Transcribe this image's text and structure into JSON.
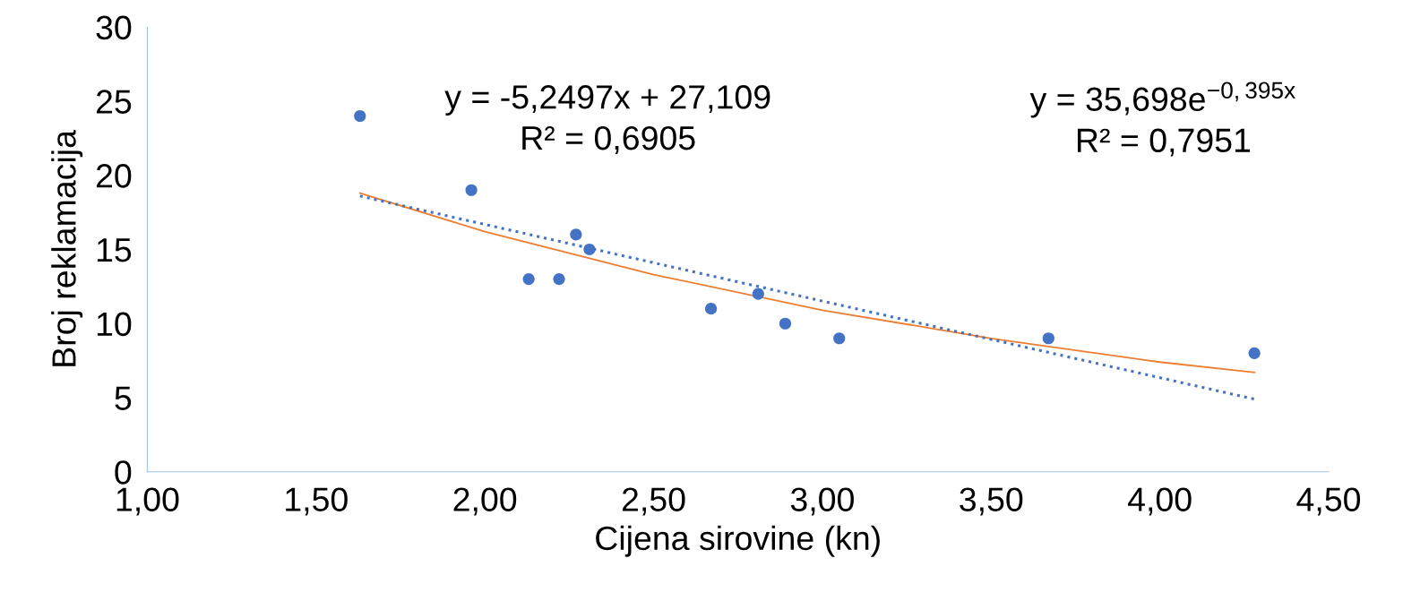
{
  "chart_data": {
    "type": "scatter",
    "xlabel": "Cijena sirovine (kn)",
    "ylabel": "Broj reklamacija",
    "xlim": [
      1.0,
      4.5
    ],
    "xticks": [
      {
        "value": 1.0,
        "label": "1,00"
      },
      {
        "value": 1.5,
        "label": "1,50"
      },
      {
        "value": 2.0,
        "label": "2,00"
      },
      {
        "value": 2.5,
        "label": "2,50"
      },
      {
        "value": 3.0,
        "label": "3,00"
      },
      {
        "value": 3.5,
        "label": "3,50"
      },
      {
        "value": 4.0,
        "label": "4,00"
      },
      {
        "value": 4.5,
        "label": "4,50"
      }
    ],
    "ylim": [
      0,
      30
    ],
    "yticks": [
      0,
      5,
      10,
      15,
      20,
      25,
      30
    ],
    "grid": false,
    "series": [
      {
        "color": "#4472c4",
        "marker": "circle",
        "x": [
          1.63,
          1.96,
          2.13,
          2.22,
          2.27,
          2.31,
          2.67,
          2.81,
          2.89,
          3.05,
          3.67,
          4.28
        ],
        "values": [
          24,
          19,
          13,
          13,
          16,
          15,
          11,
          12,
          10,
          9,
          9,
          8
        ]
      },
      {
        "type": "line",
        "color": "#ed7d31",
        "line_style": "solid",
        "x": [
          1.63,
          2.0,
          2.5,
          3.0,
          3.5,
          4.0,
          4.28
        ],
        "values": [
          18.8,
          16.2,
          13.3,
          10.9,
          9.0,
          7.4,
          6.7
        ]
      },
      {
        "type": "line",
        "color": "#4472c4",
        "line_style": "dotted",
        "x": [
          1.63,
          4.28
        ],
        "values": [
          18.6,
          4.9
        ]
      }
    ],
    "annotations": [
      "y = -5,2497x + 27,109\nR² = 0,6905",
      "y = 35,698e$^{−0,395x}$\nR² = 0,7951"
    ]
  }
}
